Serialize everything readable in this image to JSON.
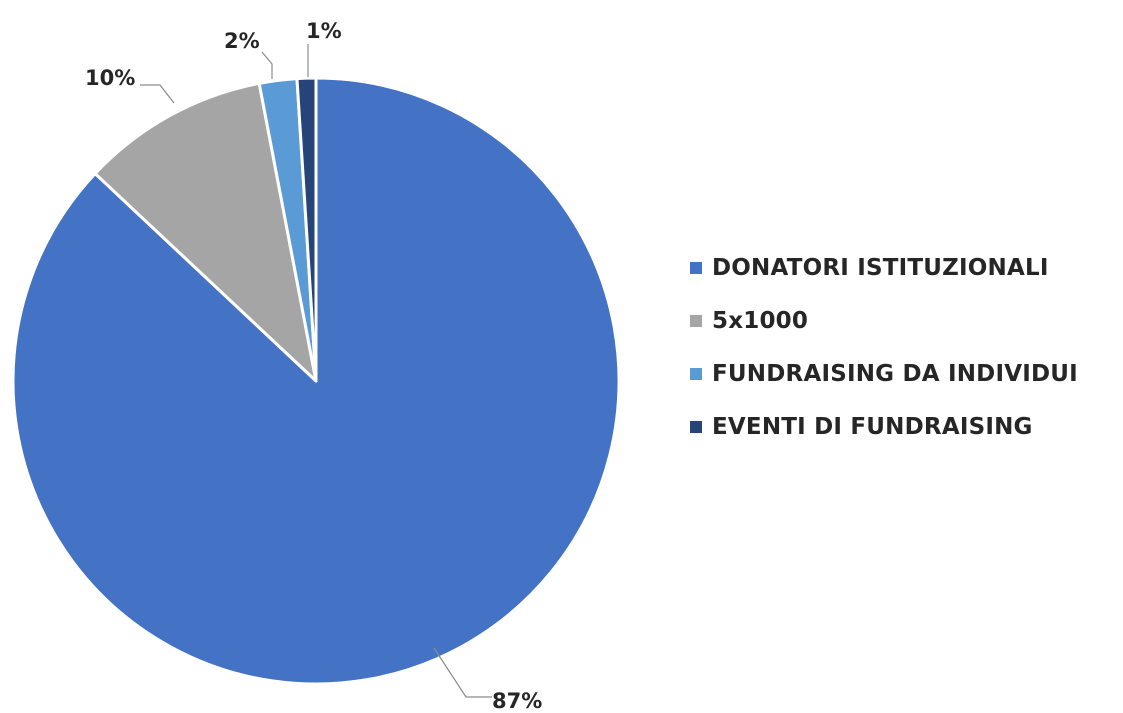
{
  "chart_data": {
    "type": "pie",
    "categories": [
      "DONATORI ISTITUZIONALI",
      "5x1000",
      "FUNDRAISING DA INDIVIDUI",
      "EVENTI DI FUNDRAISING"
    ],
    "values": [
      87,
      10,
      2,
      1
    ],
    "data_labels": [
      "87%",
      "10%",
      "2%",
      "1%"
    ],
    "colors": [
      "#4472c4",
      "#a5a5a5",
      "#5b9bd5",
      "#264478"
    ],
    "legend_position": "right",
    "title": ""
  },
  "legend": {
    "items": [
      {
        "label": "DONATORI ISTITUZIONALI",
        "color": "#4472c4"
      },
      {
        "label": "5x1000",
        "color": "#a5a5a5"
      },
      {
        "label": "FUNDRAISING DA INDIVIDUI",
        "color": "#5b9bd5"
      },
      {
        "label": "EVENTI DI FUNDRAISING",
        "color": "#264478"
      }
    ]
  }
}
